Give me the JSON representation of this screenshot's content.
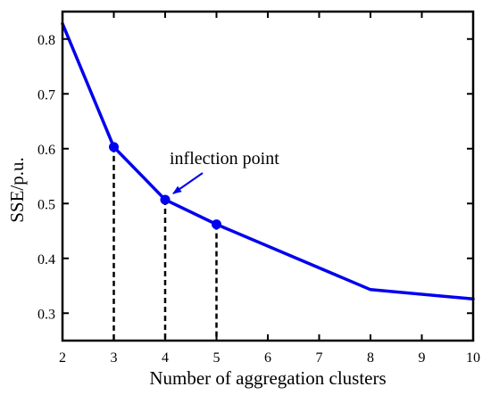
{
  "chart_data": {
    "type": "line",
    "x": [
      2,
      3,
      4,
      5,
      8,
      10
    ],
    "y": [
      0.828,
      0.603,
      0.507,
      0.462,
      0.343,
      0.326
    ],
    "highlighted_points": [
      {
        "x": 3,
        "y": 0.603
      },
      {
        "x": 4,
        "y": 0.507
      },
      {
        "x": 5,
        "y": 0.462
      }
    ],
    "xlabel": "Number of aggregation clusters",
    "ylabel": "SSE/p.u.",
    "xlim": [
      2,
      10
    ],
    "ylim": [
      0.25,
      0.85
    ],
    "xticks": [
      2,
      3,
      4,
      5,
      6,
      7,
      8,
      9,
      10
    ],
    "yticks": [
      0.3,
      0.4,
      0.5,
      0.6,
      0.7,
      0.8
    ],
    "xtick_labels": [
      "2",
      "3",
      "4",
      "5",
      "6",
      "7",
      "8",
      "9",
      "10"
    ],
    "ytick_labels": [
      "0.3",
      "0.4",
      "0.5",
      "0.6",
      "0.7",
      "0.8"
    ],
    "annotation": {
      "text": "inflection point",
      "points_to": {
        "x": 4,
        "y": 0.507
      }
    },
    "grid": false,
    "line_color": "#0000ee",
    "drop_line_color": "#000000"
  }
}
